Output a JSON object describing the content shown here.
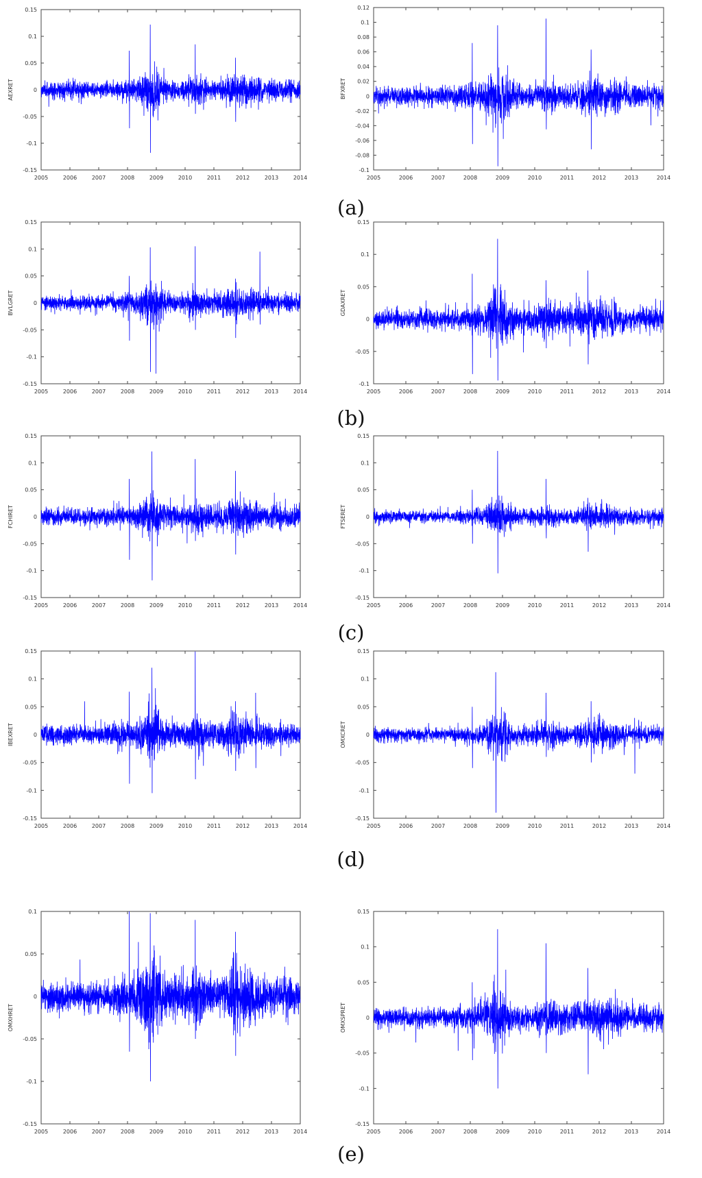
{
  "captions": [
    "(a)",
    "(b)",
    "(c)",
    "(d)",
    "(e)"
  ],
  "chart_data": [
    {
      "type": "line",
      "ylabel": "AEXRET",
      "ylim": [
        -0.15,
        0.15
      ],
      "yticks": [
        -0.15,
        -0.1,
        -0.05,
        0,
        0.05,
        0.1,
        0.15
      ],
      "xlim": [
        2005,
        2014
      ],
      "xticks": [
        2005,
        2006,
        2007,
        2008,
        2009,
        2010,
        2011,
        2012,
        2013,
        2014
      ],
      "color": "#0000ff",
      "profile": {
        "base_amplitude": 0.012,
        "events": [
          {
            "x": 2008.79,
            "max": 0.122,
            "min": -0.118
          },
          {
            "x": 2008.06,
            "max": 0.073,
            "min": -0.072
          },
          {
            "x": 2010.35,
            "max": 0.085,
            "min": -0.045
          },
          {
            "x": 2011.75,
            "max": 0.06,
            "min": -0.06
          }
        ]
      }
    },
    {
      "type": "line",
      "ylabel": "BFXRET",
      "ylim": [
        -0.1,
        0.12
      ],
      "yticks": [
        -0.1,
        -0.08,
        -0.06,
        -0.04,
        -0.02,
        0,
        0.02,
        0.04,
        0.06,
        0.08,
        0.1,
        0.12
      ],
      "xlim": [
        2005,
        2014
      ],
      "xticks": [
        2005,
        2006,
        2007,
        2008,
        2009,
        2010,
        2011,
        2012,
        2013,
        2014
      ],
      "color": "#0000ff",
      "profile": {
        "base_amplitude": 0.01,
        "events": [
          {
            "x": 2008.85,
            "max": 0.096,
            "min": -0.095
          },
          {
            "x": 2008.06,
            "max": 0.072,
            "min": -0.065
          },
          {
            "x": 2010.35,
            "max": 0.105,
            "min": -0.045
          },
          {
            "x": 2011.75,
            "max": 0.063,
            "min": -0.072
          }
        ]
      }
    },
    {
      "type": "line",
      "ylabel": "BVLGRET",
      "ylim": [
        -0.15,
        0.15
      ],
      "yticks": [
        -0.15,
        -0.1,
        -0.05,
        0,
        0.05,
        0.1,
        0.15
      ],
      "xlim": [
        2005,
        2014
      ],
      "xticks": [
        2005,
        2006,
        2007,
        2008,
        2009,
        2010,
        2011,
        2012,
        2013,
        2014
      ],
      "color": "#0000ff",
      "profile": {
        "base_amplitude": 0.011,
        "events": [
          {
            "x": 2008.79,
            "max": 0.103,
            "min": -0.128
          },
          {
            "x": 2008.06,
            "max": 0.05,
            "min": -0.07
          },
          {
            "x": 2010.35,
            "max": 0.105,
            "min": -0.05
          },
          {
            "x": 2011.75,
            "max": 0.045,
            "min": -0.065
          },
          {
            "x": 2012.6,
            "max": 0.095,
            "min": -0.04
          }
        ]
      }
    },
    {
      "type": "line",
      "ylabel": "GDAXRET",
      "ylim": [
        -0.1,
        0.15
      ],
      "yticks": [
        -0.1,
        -0.05,
        0,
        0.05,
        0.1,
        0.15
      ],
      "xlim": [
        2005,
        2014
      ],
      "xticks": [
        2005,
        2006,
        2007,
        2008,
        2009,
        2010,
        2011,
        2012,
        2013,
        2014
      ],
      "color": "#0000ff",
      "profile": {
        "base_amplitude": 0.012,
        "events": [
          {
            "x": 2008.85,
            "max": 0.124,
            "min": -0.095
          },
          {
            "x": 2008.06,
            "max": 0.07,
            "min": -0.085
          },
          {
            "x": 2010.35,
            "max": 0.06,
            "min": -0.045
          },
          {
            "x": 2011.65,
            "max": 0.075,
            "min": -0.07
          }
        ]
      }
    },
    {
      "type": "line",
      "ylabel": "FCHIRET",
      "ylim": [
        -0.15,
        0.15
      ],
      "yticks": [
        -0.15,
        -0.1,
        -0.05,
        0,
        0.05,
        0.1,
        0.15
      ],
      "xlim": [
        2005,
        2014
      ],
      "xticks": [
        2005,
        2006,
        2007,
        2008,
        2009,
        2010,
        2011,
        2012,
        2013,
        2014
      ],
      "color": "#0000ff",
      "profile": {
        "base_amplitude": 0.012,
        "events": [
          {
            "x": 2008.85,
            "max": 0.121,
            "min": -0.118
          },
          {
            "x": 2008.06,
            "max": 0.07,
            "min": -0.08
          },
          {
            "x": 2010.35,
            "max": 0.107,
            "min": -0.045
          },
          {
            "x": 2011.75,
            "max": 0.085,
            "min": -0.07
          }
        ]
      }
    },
    {
      "type": "line",
      "ylabel": "FTSERET",
      "ylim": [
        -0.15,
        0.15
      ],
      "yticks": [
        -0.15,
        -0.1,
        -0.05,
        0,
        0.05,
        0.1,
        0.15
      ],
      "xlim": [
        2005,
        2014
      ],
      "xticks": [
        2005,
        2006,
        2007,
        2008,
        2009,
        2010,
        2011,
        2012,
        2013,
        2014
      ],
      "color": "#0000ff",
      "profile": {
        "base_amplitude": 0.009,
        "events": [
          {
            "x": 2008.85,
            "max": 0.122,
            "min": -0.105
          },
          {
            "x": 2008.06,
            "max": 0.05,
            "min": -0.05
          },
          {
            "x": 2010.35,
            "max": 0.07,
            "min": -0.04
          },
          {
            "x": 2011.65,
            "max": 0.035,
            "min": -0.065
          }
        ]
      }
    },
    {
      "type": "line",
      "ylabel": "IBEXRET",
      "ylim": [
        -0.15,
        0.15
      ],
      "yticks": [
        -0.15,
        -0.1,
        -0.05,
        0,
        0.05,
        0.1,
        0.15
      ],
      "xlim": [
        2005,
        2014
      ],
      "xticks": [
        2005,
        2006,
        2007,
        2008,
        2009,
        2010,
        2011,
        2012,
        2013,
        2014
      ],
      "color": "#0000ff",
      "profile": {
        "base_amplitude": 0.013,
        "events": [
          {
            "x": 2008.85,
            "max": 0.12,
            "min": -0.105
          },
          {
            "x": 2008.06,
            "max": 0.077,
            "min": -0.088
          },
          {
            "x": 2010.35,
            "max": 0.149,
            "min": -0.08
          },
          {
            "x": 2011.75,
            "max": 0.06,
            "min": -0.065
          },
          {
            "x": 2012.45,
            "max": 0.075,
            "min": -0.06
          }
        ]
      }
    },
    {
      "type": "line",
      "ylabel": "OMXCRET",
      "ylim": [
        -0.15,
        0.15
      ],
      "yticks": [
        -0.15,
        -0.1,
        -0.05,
        0,
        0.05,
        0.1,
        0.15
      ],
      "xlim": [
        2005,
        2014
      ],
      "xticks": [
        2005,
        2006,
        2007,
        2008,
        2009,
        2010,
        2011,
        2012,
        2013,
        2014
      ],
      "color": "#0000ff",
      "profile": {
        "base_amplitude": 0.01,
        "events": [
          {
            "x": 2008.79,
            "max": 0.112,
            "min": -0.14
          },
          {
            "x": 2008.06,
            "max": 0.05,
            "min": -0.06
          },
          {
            "x": 2010.35,
            "max": 0.075,
            "min": -0.04
          },
          {
            "x": 2011.75,
            "max": 0.06,
            "min": -0.05
          },
          {
            "x": 2013.1,
            "max": 0.03,
            "min": -0.07
          }
        ]
      }
    },
    {
      "type": "line",
      "ylabel": "OMXHRET",
      "ylim": [
        -0.15,
        0.1
      ],
      "yticks": [
        -0.15,
        -0.1,
        -0.05,
        0,
        0.05,
        0.1
      ],
      "xlim": [
        2005,
        2014
      ],
      "xticks": [
        2005,
        2006,
        2007,
        2008,
        2009,
        2010,
        2011,
        2012,
        2013,
        2014
      ],
      "color": "#0000ff",
      "profile": {
        "base_amplitude": 0.014,
        "events": [
          {
            "x": 2008.79,
            "max": 0.098,
            "min": -0.1
          },
          {
            "x": 2008.06,
            "max": 0.1,
            "min": -0.065
          },
          {
            "x": 2010.35,
            "max": 0.09,
            "min": -0.05
          },
          {
            "x": 2011.75,
            "max": 0.076,
            "min": -0.07
          }
        ]
      }
    },
    {
      "type": "line",
      "ylabel": "OMXSPRET",
      "ylim": [
        -0.15,
        0.15
      ],
      "yticks": [
        -0.15,
        -0.1,
        -0.05,
        0,
        0.05,
        0.1,
        0.15
      ],
      "xlim": [
        2005,
        2014
      ],
      "xticks": [
        2005,
        2006,
        2007,
        2008,
        2009,
        2010,
        2011,
        2012,
        2013,
        2014
      ],
      "color": "#0000ff",
      "profile": {
        "base_amplitude": 0.011,
        "events": [
          {
            "x": 2008.85,
            "max": 0.125,
            "min": -0.1
          },
          {
            "x": 2008.06,
            "max": 0.05,
            "min": -0.06
          },
          {
            "x": 2010.35,
            "max": 0.105,
            "min": -0.05
          },
          {
            "x": 2011.65,
            "max": 0.07,
            "min": -0.08
          }
        ]
      }
    }
  ]
}
